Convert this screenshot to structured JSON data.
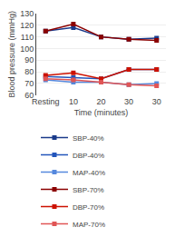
{
  "chart_data": {
    "type": "line",
    "xlabel": "Time (minutes)",
    "ylabel": "Blood pressure (mmHg)",
    "categories": [
      "Resting",
      "10",
      "20",
      "30",
      "30"
    ],
    "series": [
      {
        "name": "SBP-40%",
        "color": "#1a3a8a",
        "values": [
          115,
          118,
          110,
          108,
          109
        ]
      },
      {
        "name": "DBP-40%",
        "color": "#2255bb",
        "values": [
          76,
          75,
          74,
          82,
          82
        ]
      },
      {
        "name": "MAP-40%",
        "color": "#5588dd",
        "values": [
          73,
          71,
          71,
          69,
          70
        ]
      },
      {
        "name": "SBP-70%",
        "color": "#8b0000",
        "values": [
          115,
          121,
          110,
          108,
          107
        ]
      },
      {
        "name": "DBP-70%",
        "color": "#cc1100",
        "values": [
          77,
          79,
          74,
          82,
          82
        ]
      },
      {
        "name": "MAP-70%",
        "color": "#e05555",
        "values": [
          74,
          73,
          71,
          69,
          68
        ]
      }
    ],
    "marker": "square",
    "line_style": "solid",
    "ylim": [
      60,
      130
    ],
    "yticks": [
      60,
      70,
      80,
      90,
      100,
      110,
      120,
      130
    ],
    "grid": true,
    "legend": "bottom"
  }
}
